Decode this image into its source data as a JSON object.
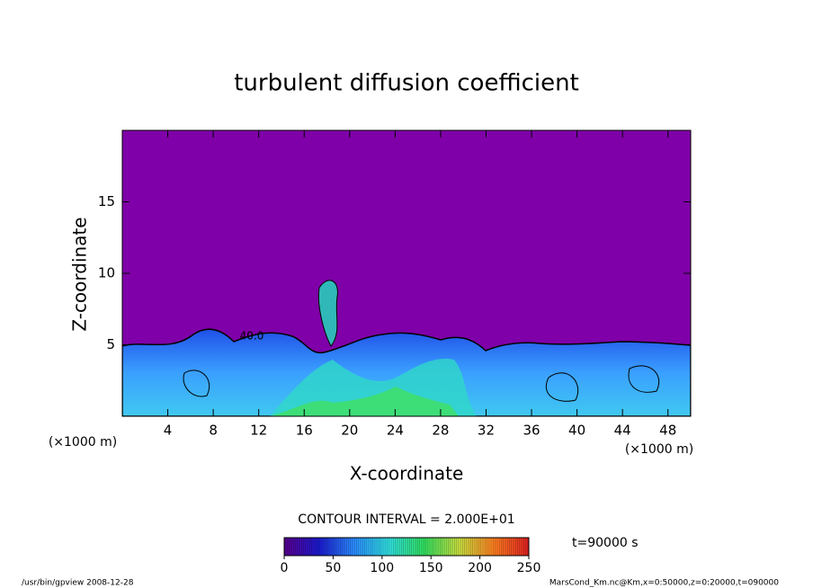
{
  "chart_data": {
    "type": "contour",
    "title": "turbulent diffusion coefficient",
    "x_label": "X-coordinate",
    "y_label": "Z-coordinate",
    "x_unit": "(×1000 m)",
    "y_unit": "(×1000 m)",
    "xlim": [
      0,
      50
    ],
    "xticks": [
      4,
      8,
      12,
      16,
      20,
      24,
      28,
      32,
      36,
      40,
      44,
      48
    ],
    "ylim": [
      0,
      20
    ],
    "yticks": [
      5,
      10,
      15
    ],
    "background_color": "#7f00a8",
    "contour_label": "40.0",
    "contour_interval": "CONTOUR INTERVAL = 2.000E+01",
    "time_label": "t=90000 s",
    "colorbar": {
      "range": [
        0,
        250
      ],
      "ticks": [
        0,
        50,
        100,
        150,
        200,
        250
      ],
      "colors": [
        "#5a0090",
        "#1a1ad0",
        "#2a8cff",
        "#30e0e0",
        "#30e060",
        "#c8e040",
        "#ff8020",
        "#e02020"
      ]
    },
    "footer_left": "/usr/bin/gpview  2008-12-28",
    "footer_right": "MarsCond_Km.nc@Km,x=0:50000,z=0:20000,t=090000"
  }
}
